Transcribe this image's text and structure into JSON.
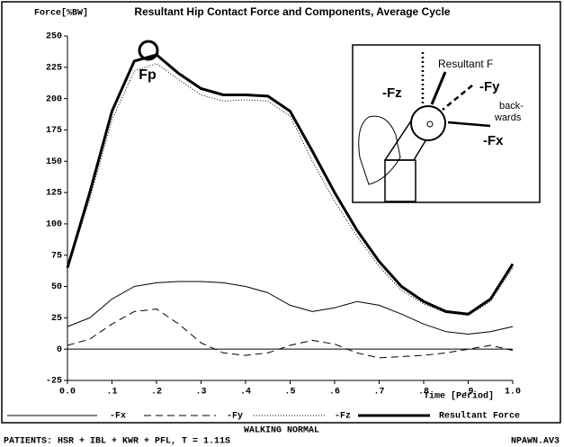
{
  "chart_data": {
    "type": "line",
    "title": "Resultant Hip Contact Force and Components, Average Cycle",
    "y_label": "Force[%BW]",
    "x_label": "Time [Period]",
    "peak_label": "Fp",
    "x": [
      0,
      0.05,
      0.1,
      0.15,
      0.2,
      0.25,
      0.3,
      0.35,
      0.4,
      0.45,
      0.5,
      0.55,
      0.6,
      0.65,
      0.7,
      0.75,
      0.8,
      0.85,
      0.9,
      0.95,
      1
    ],
    "series": [
      {
        "name": "-Fx",
        "color": "#000000",
        "dash": "solid",
        "values": [
          18,
          25,
          40,
          50,
          53,
          54,
          54,
          53,
          50,
          45,
          35,
          30,
          33,
          38,
          35,
          28,
          20,
          14,
          12,
          14,
          18
        ]
      },
      {
        "name": "-Fy",
        "color": "#000000",
        "dash": "dashed",
        "values": [
          3,
          8,
          20,
          30,
          32,
          20,
          5,
          -3,
          -5,
          -3,
          3,
          7,
          4,
          -3,
          -7,
          -6,
          -5,
          -3,
          0,
          3,
          -1
        ]
      },
      {
        "name": "-Fz",
        "color": "#000000",
        "dash": "dotted",
        "values": [
          63,
          120,
          183,
          222,
          228,
          215,
          203,
          198,
          199,
          198,
          186,
          150,
          118,
          90,
          66,
          47,
          36,
          29,
          27,
          38,
          65
        ]
      },
      {
        "name": "Resultant Force",
        "color": "#000000",
        "dash": "thick",
        "values": [
          65,
          125,
          190,
          230,
          235,
          220,
          208,
          203,
          203,
          202,
          190,
          158,
          125,
          95,
          70,
          50,
          38,
          30,
          28,
          40,
          68
        ]
      }
    ],
    "xlim": [
      0,
      1
    ],
    "xticks": [
      {
        "value": 0,
        "label": "0.0"
      },
      {
        "value": 0.1,
        "label": ".1"
      },
      {
        "value": 0.2,
        "label": ".2"
      },
      {
        "value": 0.3,
        "label": ".3"
      },
      {
        "value": 0.4,
        "label": ".4"
      },
      {
        "value": 0.5,
        "label": ".5"
      },
      {
        "value": 0.6,
        "label": ".6"
      },
      {
        "value": 0.7,
        "label": ".7"
      },
      {
        "value": 0.8,
        "label": ".8"
      },
      {
        "value": 0.9,
        "label": ".9"
      },
      {
        "value": 1,
        "label": "1.0"
      }
    ],
    "ylim": [
      -25,
      250
    ],
    "yticks": [
      -25,
      0,
      25,
      50,
      75,
      100,
      125,
      150,
      175,
      200,
      225,
      250
    ],
    "grid": false,
    "inset_labels": [
      "-Fz",
      "Resultant F",
      "-Fy",
      "back-",
      "wards",
      "-Fx"
    ],
    "footer": {
      "center": "WALKING NORMAL",
      "left": "PATIENTS: HSR + IBL + KWR + PFL, T = 1.11S",
      "right": "NPAWN.AV3"
    }
  }
}
